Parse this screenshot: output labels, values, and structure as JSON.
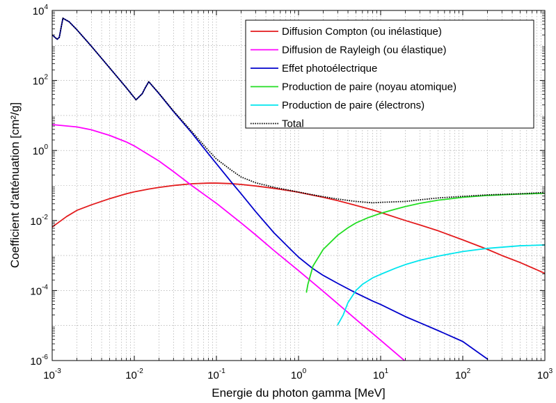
{
  "chart_data": {
    "type": "line",
    "title": "",
    "xlabel": "Energie du photon gamma [MeV]",
    "ylabel": "Coefficient d'atténuation [cm²/g]",
    "xscale": "log",
    "yscale": "log",
    "xlim": [
      0.001,
      1000
    ],
    "ylim": [
      1e-06,
      10000
    ],
    "grid": true,
    "legend_position": "top-right",
    "x_ticks": [
      {
        "base": "10",
        "exp": "-3",
        "value": 0.001
      },
      {
        "base": "10",
        "exp": "-2",
        "value": 0.01
      },
      {
        "base": "10",
        "exp": "-1",
        "value": 0.1
      },
      {
        "base": "10",
        "exp": "0",
        "value": 1
      },
      {
        "base": "10",
        "exp": "1",
        "value": 10
      },
      {
        "base": "10",
        "exp": "2",
        "value": 100
      },
      {
        "base": "10",
        "exp": "3",
        "value": 1000
      }
    ],
    "y_ticks": [
      {
        "base": "10",
        "exp": "-6",
        "value": 1e-06
      },
      {
        "base": "10",
        "exp": "-4",
        "value": 0.0001
      },
      {
        "base": "10",
        "exp": "-2",
        "value": 0.01
      },
      {
        "base": "10",
        "exp": "0",
        "value": 1
      },
      {
        "base": "10",
        "exp": "2",
        "value": 100
      },
      {
        "base": "10",
        "exp": "4",
        "value": 10000
      }
    ],
    "series": [
      {
        "name": "Diffusion Compton (ou inélastique)",
        "color": "#e31a1c",
        "dash": "solid",
        "points": [
          [
            0.001,
            0.0065
          ],
          [
            0.0015,
            0.013
          ],
          [
            0.002,
            0.0195
          ],
          [
            0.003,
            0.028
          ],
          [
            0.005,
            0.042
          ],
          [
            0.008,
            0.058
          ],
          [
            0.01,
            0.066
          ],
          [
            0.015,
            0.079
          ],
          [
            0.02,
            0.088
          ],
          [
            0.03,
            0.1
          ],
          [
            0.05,
            0.112
          ],
          [
            0.08,
            0.117
          ],
          [
            0.1,
            0.117
          ],
          [
            0.15,
            0.113
          ],
          [
            0.2,
            0.107
          ],
          [
            0.3,
            0.097
          ],
          [
            0.5,
            0.083
          ],
          [
            0.8,
            0.07
          ],
          [
            1,
            0.064
          ],
          [
            2,
            0.046
          ],
          [
            3,
            0.037
          ],
          [
            5,
            0.027
          ],
          [
            8,
            0.02
          ],
          [
            10,
            0.017
          ],
          [
            20,
            0.01
          ],
          [
            30,
            0.0075
          ],
          [
            50,
            0.0051
          ],
          [
            100,
            0.0028
          ],
          [
            200,
            0.0015
          ],
          [
            300,
            0.001
          ],
          [
            500,
            0.00063
          ],
          [
            1000,
            0.00031
          ]
        ]
      },
      {
        "name": "Diffusion de Rayleigh (ou élastique)",
        "color": "#ff00ff",
        "dash": "solid",
        "points": [
          [
            0.001,
            5.5
          ],
          [
            0.002,
            4.7
          ],
          [
            0.003,
            3.9
          ],
          [
            0.005,
            2.7
          ],
          [
            0.008,
            1.75
          ],
          [
            0.01,
            1.35
          ],
          [
            0.02,
            0.5
          ],
          [
            0.03,
            0.25
          ],
          [
            0.05,
            0.1
          ],
          [
            0.08,
            0.045
          ],
          [
            0.1,
            0.031
          ],
          [
            0.2,
            0.0085
          ],
          [
            0.3,
            0.0039
          ],
          [
            0.5,
            0.0014
          ],
          [
            1,
            0.00037
          ],
          [
            2,
            9.5e-05
          ],
          [
            3,
            4.2e-05
          ],
          [
            5,
            1.5e-05
          ],
          [
            10,
            3.8e-06
          ],
          [
            20,
            9.5e-07
          ],
          [
            25,
            6e-07
          ]
        ]
      },
      {
        "name": "Effet photoélectrique",
        "color": "#0000cc",
        "dash": "solid",
        "points": [
          [
            0.001,
            2000
          ],
          [
            0.00115,
            1500
          ],
          [
            0.00122,
            1700
          ],
          [
            0.00135,
            6000
          ],
          [
            0.0015,
            5200
          ],
          [
            0.0016,
            4800
          ],
          [
            0.002,
            2800
          ],
          [
            0.003,
            950
          ],
          [
            0.005,
            230
          ],
          [
            0.008,
            62
          ],
          [
            0.0105,
            28
          ],
          [
            0.0125,
            42
          ],
          [
            0.0135,
            60
          ],
          [
            0.015,
            92
          ],
          [
            0.02,
            42
          ],
          [
            0.03,
            13
          ],
          [
            0.05,
            3.2
          ],
          [
            0.08,
            0.8
          ],
          [
            0.1,
            0.42
          ],
          [
            0.15,
            0.13
          ],
          [
            0.2,
            0.058
          ],
          [
            0.3,
            0.018
          ],
          [
            0.5,
            0.0045
          ],
          [
            0.8,
            0.0015
          ],
          [
            1,
            0.0009
          ],
          [
            1.5,
            0.00042
          ],
          [
            2,
            0.00027
          ],
          [
            3,
            0.00016
          ],
          [
            5,
            8.5e-05
          ],
          [
            8,
            5e-05
          ],
          [
            10,
            4e-05
          ],
          [
            20,
            1.8e-05
          ],
          [
            30,
            1.2e-05
          ],
          [
            50,
            7.2e-06
          ],
          [
            100,
            3.5e-06
          ],
          [
            200,
            1.1e-06
          ]
        ]
      },
      {
        "name": "Production de paire (noyau atomique)",
        "color": "#22dd22",
        "dash": "solid",
        "points": [
          [
            1.25,
            9e-05
          ],
          [
            1.3,
            0.00015
          ],
          [
            1.5,
            0.0005
          ],
          [
            2,
            0.0015
          ],
          [
            3,
            0.0038
          ],
          [
            4,
            0.0062
          ],
          [
            5,
            0.0085
          ],
          [
            7,
            0.012
          ],
          [
            10,
            0.016
          ],
          [
            15,
            0.021
          ],
          [
            20,
            0.025
          ],
          [
            30,
            0.031
          ],
          [
            50,
            0.038
          ],
          [
            100,
            0.046
          ],
          [
            200,
            0.052
          ],
          [
            500,
            0.057
          ],
          [
            1000,
            0.06
          ]
        ]
      },
      {
        "name": "Production de paire (électrons)",
        "color": "#00e5ee",
        "dash": "solid",
        "points": [
          [
            3,
            1.05e-05
          ],
          [
            3.5,
            2e-05
          ],
          [
            4,
            4.5e-05
          ],
          [
            5,
            0.0001
          ],
          [
            6,
            0.00015
          ],
          [
            8,
            0.00023
          ],
          [
            10,
            0.00029
          ],
          [
            15,
            0.00043
          ],
          [
            20,
            0.00055
          ],
          [
            30,
            0.00073
          ],
          [
            50,
            0.00096
          ],
          [
            100,
            0.0013
          ],
          [
            200,
            0.0016
          ],
          [
            500,
            0.0019
          ],
          [
            1000,
            0.002
          ]
        ]
      },
      {
        "name": "Total",
        "color": "#000000",
        "dash": "dotted",
        "points": [
          [
            0.001,
            2000
          ],
          [
            0.00115,
            1500
          ],
          [
            0.00122,
            1700
          ],
          [
            0.00135,
            6000
          ],
          [
            0.0015,
            5200
          ],
          [
            0.0016,
            4800
          ],
          [
            0.002,
            2800
          ],
          [
            0.003,
            950
          ],
          [
            0.005,
            230
          ],
          [
            0.008,
            62
          ],
          [
            0.0105,
            28
          ],
          [
            0.0125,
            42
          ],
          [
            0.0135,
            60
          ],
          [
            0.015,
            92
          ],
          [
            0.02,
            43
          ],
          [
            0.03,
            13.5
          ],
          [
            0.05,
            3.5
          ],
          [
            0.08,
            1.0
          ],
          [
            0.1,
            0.57
          ],
          [
            0.15,
            0.28
          ],
          [
            0.2,
            0.175
          ],
          [
            0.3,
            0.12
          ],
          [
            0.5,
            0.089
          ],
          [
            0.8,
            0.072
          ],
          [
            1,
            0.065
          ],
          [
            1.5,
            0.054
          ],
          [
            2,
            0.048
          ],
          [
            3,
            0.041
          ],
          [
            5,
            0.035
          ],
          [
            8,
            0.032
          ],
          [
            10,
            0.033
          ],
          [
            20,
            0.035
          ],
          [
            30,
            0.039
          ],
          [
            50,
            0.044
          ],
          [
            100,
            0.049
          ],
          [
            200,
            0.054
          ],
          [
            500,
            0.058
          ],
          [
            1000,
            0.063
          ]
        ]
      }
    ]
  }
}
